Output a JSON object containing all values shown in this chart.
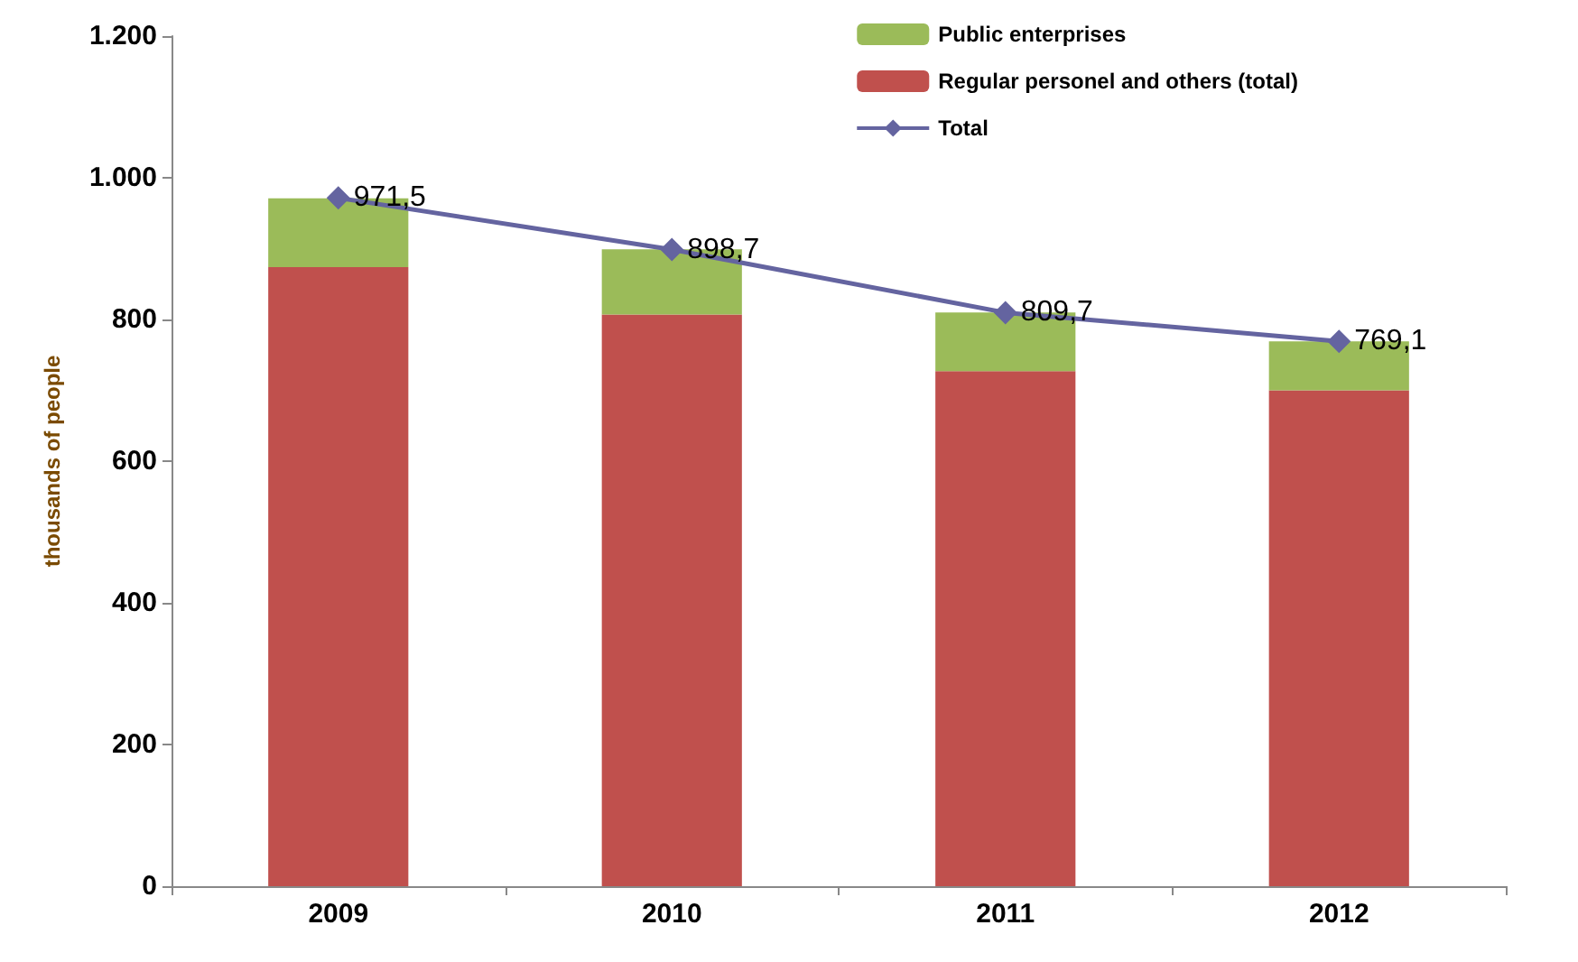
{
  "chart_data": {
    "type": "bar",
    "ylabel": "thousands of people",
    "categories": [
      "2009",
      "2010",
      "2011",
      "2012"
    ],
    "stacked": true,
    "series": [
      {
        "name": "Regular personel and others (total)",
        "color": "#c0504d",
        "values": [
          874,
          807,
          727,
          700
        ]
      },
      {
        "name": "Public enterprises",
        "color": "#9bbb59",
        "values": [
          97,
          92,
          83,
          69
        ]
      },
      {
        "name": "Total",
        "type": "line",
        "color": "#6464a0",
        "marker": "diamond",
        "values": [
          971.5,
          898.7,
          809.7,
          769.1
        ],
        "value_labels": [
          "971,5",
          "898,7",
          "809,7",
          "769,1"
        ]
      }
    ],
    "ylim": [
      0,
      1200
    ],
    "yticks": [
      0,
      200,
      400,
      600,
      800,
      {
        "value": 1000,
        "label": "1.000"
      },
      {
        "value": 1200,
        "label": "1.200"
      }
    ],
    "grid": false,
    "legend": "top right"
  }
}
